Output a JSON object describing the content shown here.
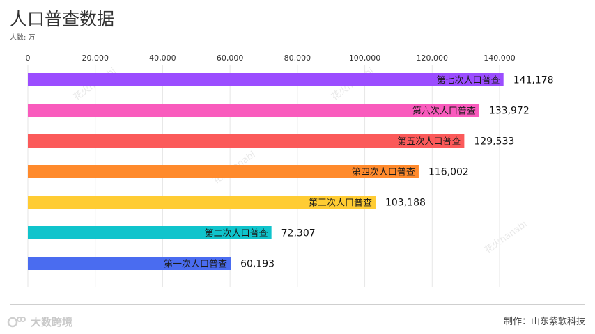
{
  "header": {
    "title": "人口普查数据",
    "unit": "人数: 万"
  },
  "footer": {
    "credit": "制作：山东紫软科技",
    "brand": "大数跨境"
  },
  "watermark": "花火hanabi",
  "chart_data": {
    "type": "bar",
    "orientation": "horizontal",
    "title": "人口普查数据",
    "ylabel": "人数: 万",
    "xlim": [
      0,
      140000
    ],
    "ticks": [
      0,
      20000,
      40000,
      60000,
      80000,
      100000,
      120000,
      140000
    ],
    "tick_labels": [
      "0",
      "20,000",
      "40,000",
      "60,000",
      "80,000",
      "100,000",
      "120,000",
      "140,000"
    ],
    "categories": [
      "第七次人口普查",
      "第六次人口普查",
      "第五次人口普查",
      "第四次人口普查",
      "第三次人口普查",
      "第二次人口普查",
      "第一次人口普查"
    ],
    "values": [
      141178,
      133972,
      129533,
      116002,
      103188,
      72307,
      60193
    ],
    "value_labels": [
      "141,178",
      "133,972",
      "129,533",
      "116,002",
      "103,188",
      "72,307",
      "60,193"
    ],
    "colors": [
      "#9b4dff",
      "#f95bbd",
      "#fb5a5a",
      "#ff8a2c",
      "#ffcc33",
      "#10c4cc",
      "#4a6cf0"
    ],
    "grid": true,
    "legend": "none"
  }
}
